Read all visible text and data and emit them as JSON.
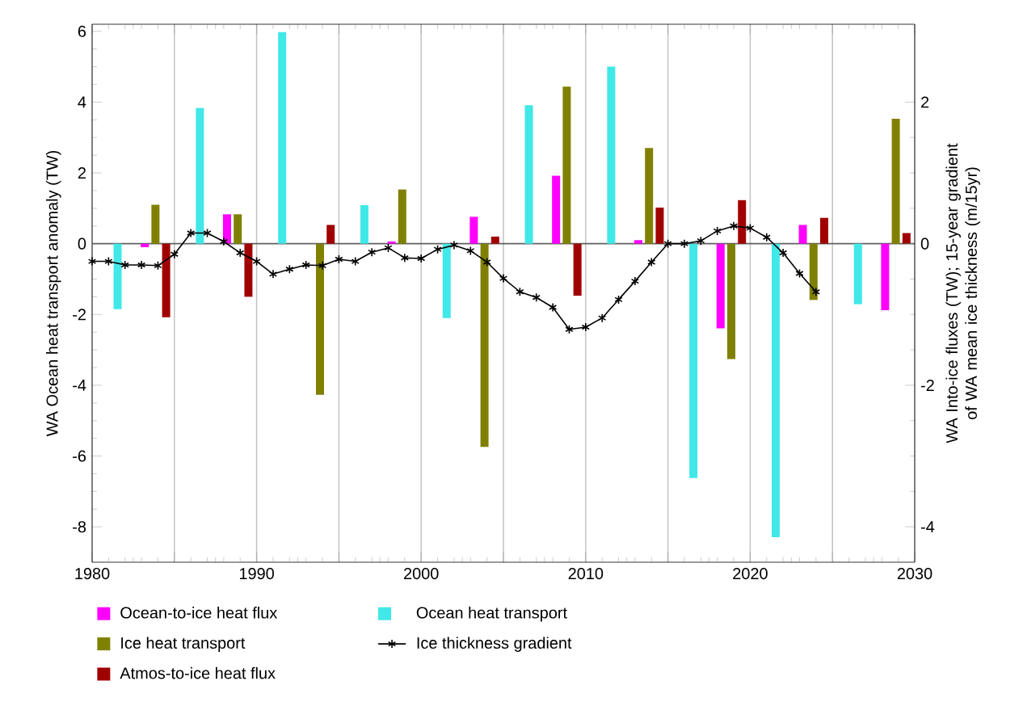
{
  "chart_data": {
    "type": "bar",
    "ylabel": "WA Ocean heat transport anomaly (TW)",
    "y2label": "WA Into-ice fluxes (TW); 15-year gradient of WA mean ice thickness (m/15yr)",
    "xlim": [
      1980,
      2030
    ],
    "xticks": [
      1980,
      {
        "value": 1985,
        "label": null
      },
      1990,
      {
        "value": 1995,
        "label": null
      },
      2000,
      {
        "value": 2005,
        "label": null
      },
      2010,
      {
        "value": 2015,
        "label": null
      },
      2020,
      {
        "value": 2025,
        "label": null
      },
      2030
    ],
    "ylim": [
      -9,
      6.2
    ],
    "yticks": [
      -8,
      -6,
      -4,
      -2,
      0,
      2,
      4,
      6
    ],
    "y2lim": [
      -4.5,
      3.1
    ],
    "y2ticks": [
      -4,
      -2,
      0,
      2
    ],
    "grid": "x",
    "legend": "bottom",
    "ref_lines": [
      {
        "axis": "y",
        "value": 0,
        "color": "#606060"
      }
    ],
    "series": [
      {
        "name": "Ocean-to-ice heat flux",
        "color": "#ff00ff",
        "x": [
          1983.2,
          1988.2,
          1993.2,
          1998.2,
          2003.2,
          2008.2,
          2013.2,
          2018.2,
          2023.2,
          2028.2
        ],
        "values": [
          -0.1,
          0.83,
          0,
          0.06,
          0.76,
          1.92,
          0.1,
          -2.39,
          0.53,
          -1.88
        ]
      },
      {
        "name": "Ocean heat transport",
        "color": "#40e8e8",
        "x": [
          1981.55,
          1986.55,
          1991.55,
          1996.55,
          2001.55,
          2006.55,
          2011.55,
          2016.55,
          2021.55,
          2026.55
        ],
        "values": [
          -1.85,
          3.83,
          5.98,
          1.09,
          -2.1,
          3.91,
          5.0,
          -6.62,
          -8.29,
          -1.71
        ]
      },
      {
        "name": "Ice heat transport",
        "color": "#808000",
        "x": [
          1983.85,
          1988.85,
          1993.85,
          1998.85,
          2003.85,
          2008.85,
          2013.85,
          2018.85,
          2023.85,
          2028.85
        ],
        "values": [
          1.1,
          0.83,
          -4.27,
          1.53,
          -5.74,
          4.44,
          2.7,
          -3.26,
          -1.59,
          3.53
        ]
      },
      {
        "name": "Ice thickness gradient",
        "type": "line",
        "axis": "y2",
        "color": "#000000",
        "marker": "cross",
        "x": [
          1980,
          1981,
          1982,
          1983,
          1984,
          1985,
          1986,
          1987,
          1988,
          1989,
          1990,
          1991,
          1992,
          1993,
          1994,
          1995,
          1996,
          1997,
          1998,
          1999,
          2000,
          2001,
          2002,
          2003,
          2004,
          2005,
          2006,
          2007,
          2008,
          2009,
          2010,
          2011,
          2012,
          2013,
          2014,
          2015,
          2016,
          2017,
          2018,
          2019,
          2020,
          2021,
          2022,
          2023,
          2024
        ],
        "values": [
          -0.25,
          -0.25,
          -0.3,
          -0.3,
          -0.31,
          -0.15,
          0.15,
          0.15,
          0.03,
          -0.13,
          -0.25,
          -0.43,
          -0.36,
          -0.3,
          -0.31,
          -0.22,
          -0.25,
          -0.12,
          -0.06,
          -0.2,
          -0.21,
          -0.08,
          -0.02,
          -0.1,
          -0.26,
          -0.49,
          -0.68,
          -0.76,
          -0.9,
          -1.21,
          -1.18,
          -1.05,
          -0.79,
          -0.53,
          -0.26,
          0,
          0,
          0.04,
          0.18,
          0.25,
          0.22,
          0.09,
          -0.13,
          -0.42,
          -0.68
        ]
      },
      {
        "name": "Atmos-to-ice heat flux",
        "color": "#a00000",
        "x": [
          1984.5,
          1989.5,
          1994.5,
          1999.5,
          2004.5,
          2009.5,
          2014.5,
          2019.5,
          2024.5,
          2029.5
        ],
        "values": [
          -2.08,
          -1.5,
          0.53,
          0,
          0.2,
          -1.47,
          1.02,
          1.23,
          0.73,
          0.3
        ]
      }
    ]
  }
}
